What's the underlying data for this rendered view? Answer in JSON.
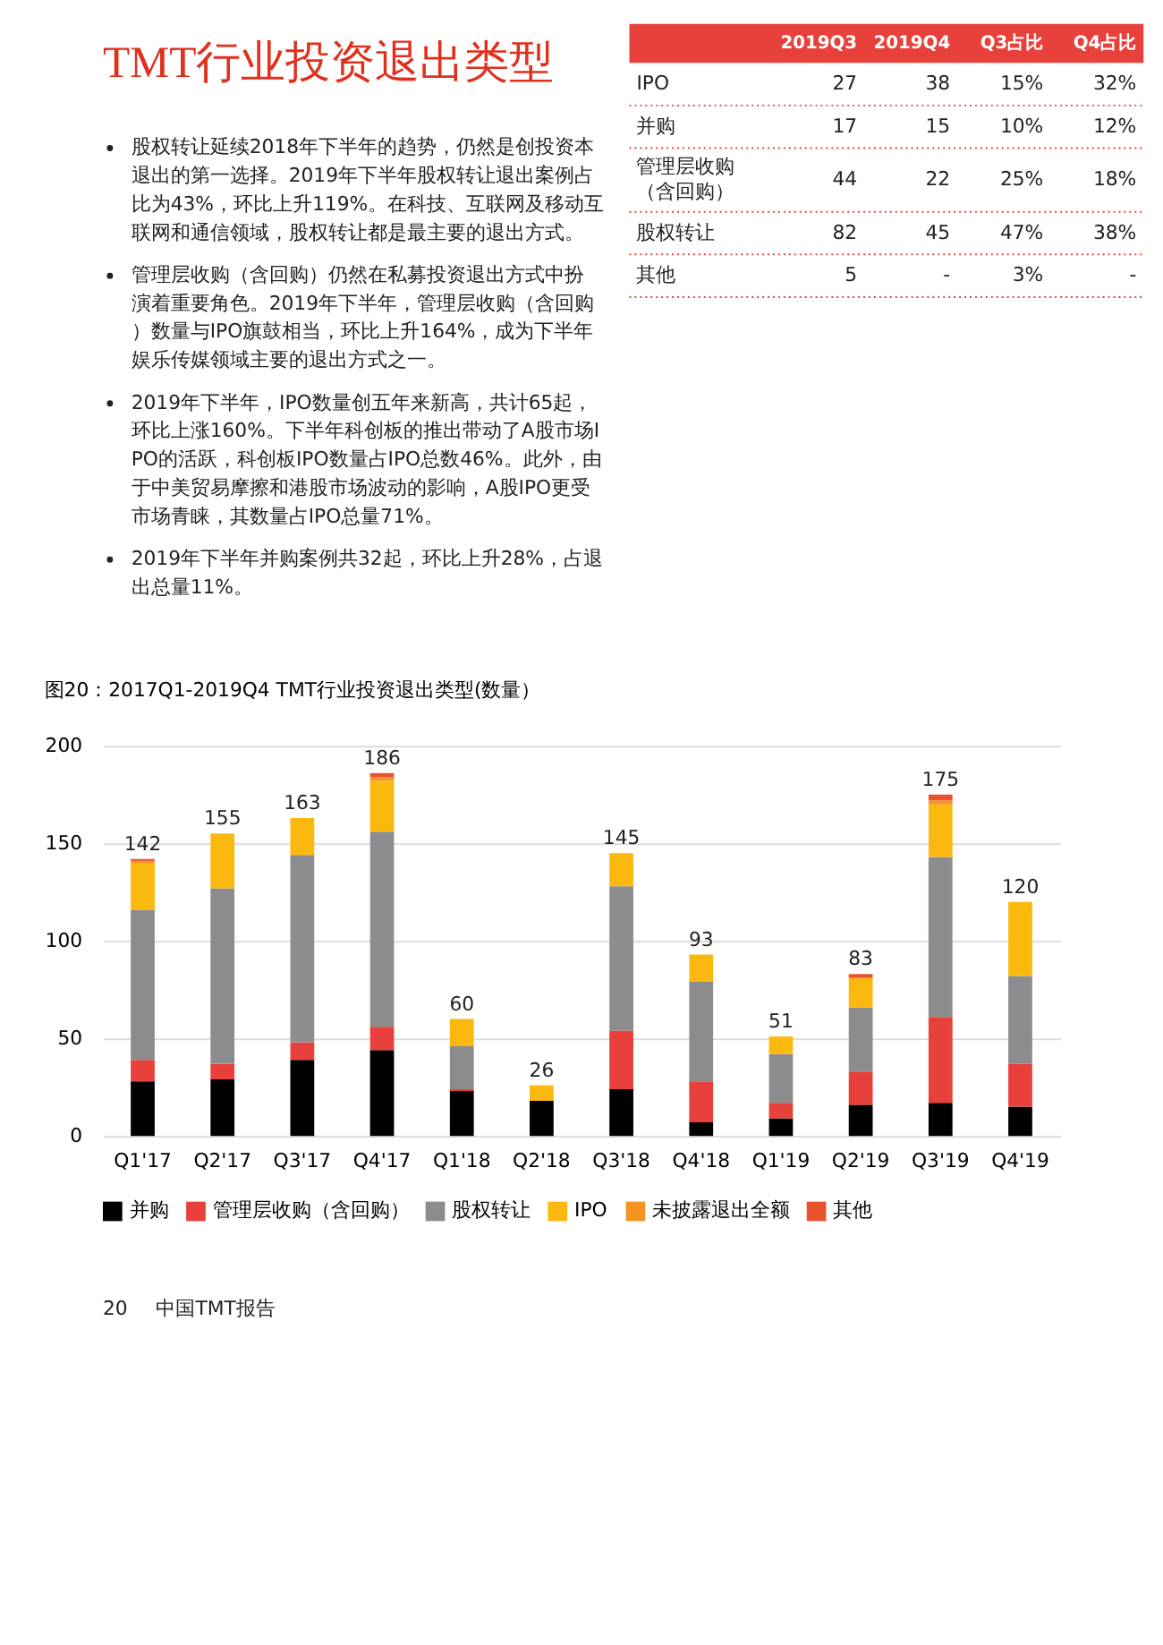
{
  "chart_data": [
    {
      "type": "other",
      "title": "TMT行业投资退出类型",
      "annotations": [
        "股权转让延续2018年下半年的趋势，仍然是创投资本退出的第一选择。2019年下半年股权转让退出案例占比为43%，环比上升119%。在科技、互联网及移动互联网和通信领域，股权转让都是最主要的退出方式。",
        "管理层收购（含回购）仍然在私募投资退出方式中扮演着重要角色。2019年下半年，管理层收购（含回购）数量与IPO旗鼓相当，环比上升164%，成为下半年娱乐传媒领域主要的退出方式之一。",
        "2019年下半年，IPO数量创五年来新高，共计65起，环比上涨160%。下半年科创板的推出带动了A股市场IPO的活跃，科创板IPO数量占IPO总数46%。此外，由于中美贸易摩擦和港股市场波动的影响，A股IPO更受市场青睐，其数量占IPO总量71%。",
        "2019年下半年并购案例共32起，环比上升28%，占退出总量11%。"
      ]
    },
    {
      "type": "other",
      "categories": [
        "2019Q3",
        "2019Q4",
        "Q3占比",
        "Q4占比"
      ],
      "y_categories": [
        "IPO",
        "并购",
        "管理层收购（含回购）",
        "股权转让",
        "其他"
      ],
      "cell_labels": [
        [
          "27",
          "38",
          "15%",
          "32%"
        ],
        [
          "17",
          "15",
          "10%",
          "12%"
        ],
        [
          "44",
          "22",
          "25%",
          "18%"
        ],
        [
          "82",
          "45",
          "47%",
          "38%"
        ],
        [
          "5",
          "-",
          "3%",
          "-"
        ]
      ]
    },
    {
      "type": "bar",
      "title": "图20：2017Q1-2019Q4 TMT行业投资退出类型(数量）",
      "stacked": true,
      "categories": [
        "Q1'17",
        "Q2'17",
        "Q3'17",
        "Q4'17",
        "Q1'18",
        "Q2'18",
        "Q3'18",
        "Q4'18",
        "Q1'19",
        "Q2'19",
        "Q3'19",
        "Q4'19"
      ],
      "series": [
        {
          "name": "并购",
          "color": "#000000",
          "values": [
            28,
            29,
            39,
            44,
            23,
            18,
            24,
            7,
            9,
            16,
            17,
            15
          ]
        },
        {
          "name": "管理层收购（含回购）",
          "color": "#e8403a",
          "values": [
            11,
            8,
            9,
            12,
            1,
            0,
            30,
            21,
            8,
            17,
            44,
            22
          ]
        },
        {
          "name": "股权转让",
          "color": "#8c8c8e",
          "values": [
            77,
            90,
            96,
            100,
            22,
            0,
            74,
            51,
            25,
            33,
            82,
            45
          ]
        },
        {
          "name": "IPO",
          "color": "#fbb90f",
          "values": [
            24,
            28,
            19,
            26,
            14,
            8,
            17,
            14,
            9,
            15,
            27,
            38
          ]
        },
        {
          "name": "未披露退出全额",
          "color": "#f39423",
          "values": [
            1,
            0,
            0,
            2,
            0,
            0,
            0,
            0,
            0,
            0,
            2,
            0
          ]
        },
        {
          "name": "其他",
          "color": "#e8532d",
          "values": [
            1,
            0,
            0,
            2,
            0,
            0,
            0,
            0,
            0,
            2,
            3,
            0
          ]
        }
      ],
      "totals": [
        "142",
        "155",
        "163",
        "186",
        "60",
        "26",
        "145",
        "93",
        "51",
        "83",
        "175",
        "120"
      ],
      "ylim": [
        0,
        200
      ],
      "yticks": [
        0,
        50,
        100,
        150,
        200
      ],
      "grid": "y",
      "legend": "bottom",
      "annotations": [
        "20",
        "中国TMT报告"
      ]
    }
  ]
}
